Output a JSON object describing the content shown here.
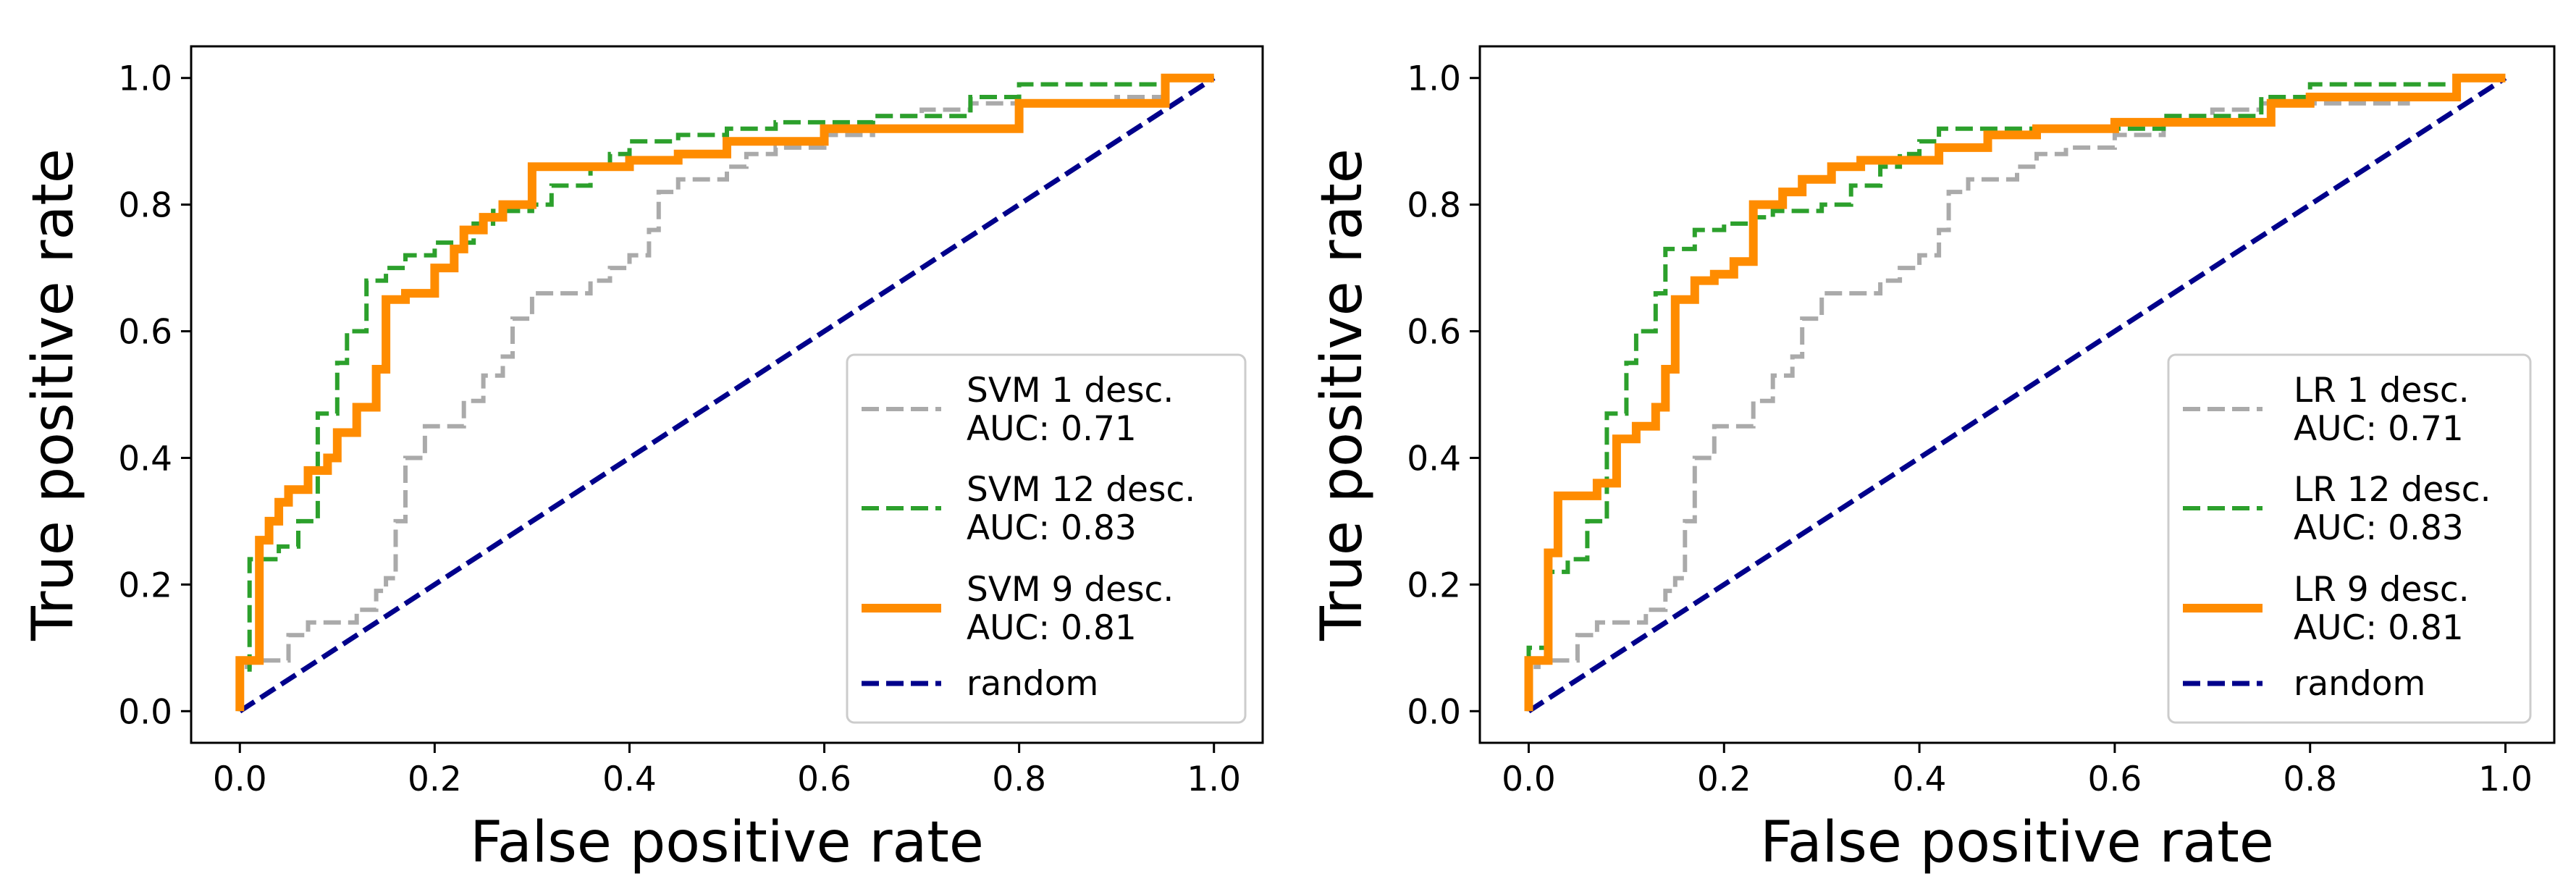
{
  "chart_data": [
    {
      "type": "line",
      "xlabel": "False positive rate",
      "ylabel": "True positive rate",
      "xlim": [
        -0.05,
        1.05
      ],
      "ylim": [
        -0.05,
        1.05
      ],
      "xticks": [
        "0.0",
        "0.2",
        "0.4",
        "0.6",
        "0.8",
        "1.0"
      ],
      "yticks": [
        "0.0",
        "0.2",
        "0.4",
        "0.6",
        "0.8",
        "1.0"
      ],
      "legend_position": "lower-right",
      "series": [
        {
          "name": "SVM 1 desc.",
          "auc_label": "AUC: 0.71",
          "color": "#aaaaaa",
          "style": "dashed",
          "x": [
            0.0,
            0.0,
            0.01,
            0.01,
            0.05,
            0.05,
            0.07,
            0.07,
            0.12,
            0.12,
            0.14,
            0.14,
            0.15,
            0.15,
            0.16,
            0.16,
            0.17,
            0.17,
            0.19,
            0.19,
            0.23,
            0.23,
            0.25,
            0.25,
            0.27,
            0.27,
            0.28,
            0.28,
            0.3,
            0.3,
            0.36,
            0.36,
            0.38,
            0.38,
            0.4,
            0.4,
            0.42,
            0.42,
            0.43,
            0.43,
            0.45,
            0.45,
            0.5,
            0.5,
            0.52,
            0.52,
            0.55,
            0.55,
            0.6,
            0.6,
            0.65,
            0.65,
            0.7,
            0.7,
            0.75,
            0.75,
            0.9,
            0.9,
            0.95,
            0.95,
            1.0
          ],
          "y": [
            0.0,
            0.07,
            0.07,
            0.08,
            0.08,
            0.12,
            0.12,
            0.14,
            0.14,
            0.16,
            0.16,
            0.19,
            0.19,
            0.21,
            0.21,
            0.3,
            0.3,
            0.4,
            0.4,
            0.45,
            0.45,
            0.49,
            0.49,
            0.53,
            0.53,
            0.56,
            0.56,
            0.62,
            0.62,
            0.66,
            0.66,
            0.68,
            0.68,
            0.7,
            0.7,
            0.72,
            0.72,
            0.76,
            0.76,
            0.82,
            0.82,
            0.84,
            0.84,
            0.86,
            0.86,
            0.88,
            0.88,
            0.89,
            0.89,
            0.91,
            0.91,
            0.94,
            0.94,
            0.95,
            0.95,
            0.96,
            0.96,
            0.97,
            0.97,
            1.0,
            1.0
          ]
        },
        {
          "name": "SVM 12 desc.",
          "auc_label": "AUC: 0.83",
          "color": "#2ca02c",
          "style": "dashed",
          "x": [
            0.0,
            0.0,
            0.01,
            0.01,
            0.04,
            0.04,
            0.06,
            0.06,
            0.08,
            0.08,
            0.1,
            0.1,
            0.11,
            0.11,
            0.13,
            0.13,
            0.15,
            0.15,
            0.17,
            0.17,
            0.2,
            0.2,
            0.24,
            0.24,
            0.26,
            0.26,
            0.3,
            0.3,
            0.32,
            0.32,
            0.36,
            0.36,
            0.38,
            0.38,
            0.4,
            0.4,
            0.45,
            0.45,
            0.5,
            0.5,
            0.55,
            0.55,
            0.65,
            0.65,
            0.75,
            0.75,
            0.8,
            0.8,
            0.95,
            0.95,
            1.0
          ],
          "y": [
            0.0,
            0.06,
            0.06,
            0.24,
            0.24,
            0.26,
            0.26,
            0.3,
            0.3,
            0.47,
            0.47,
            0.55,
            0.55,
            0.6,
            0.6,
            0.68,
            0.68,
            0.7,
            0.7,
            0.72,
            0.72,
            0.74,
            0.74,
            0.77,
            0.77,
            0.79,
            0.79,
            0.8,
            0.8,
            0.83,
            0.83,
            0.86,
            0.86,
            0.88,
            0.88,
            0.9,
            0.9,
            0.91,
            0.91,
            0.92,
            0.92,
            0.93,
            0.93,
            0.94,
            0.94,
            0.97,
            0.97,
            0.99,
            0.99,
            1.0,
            1.0
          ]
        },
        {
          "name": "SVM 9 desc.",
          "auc_label": "AUC: 0.81",
          "color": "#ff8c00",
          "style": "solid",
          "x": [
            0.0,
            0.0,
            0.02,
            0.02,
            0.03,
            0.03,
            0.04,
            0.04,
            0.05,
            0.05,
            0.07,
            0.07,
            0.09,
            0.09,
            0.1,
            0.1,
            0.12,
            0.12,
            0.14,
            0.14,
            0.15,
            0.15,
            0.17,
            0.17,
            0.2,
            0.2,
            0.22,
            0.22,
            0.23,
            0.23,
            0.25,
            0.25,
            0.27,
            0.27,
            0.3,
            0.3,
            0.4,
            0.4,
            0.45,
            0.45,
            0.5,
            0.5,
            0.6,
            0.6,
            0.8,
            0.8,
            0.95,
            0.95,
            1.0
          ],
          "y": [
            0.0,
            0.08,
            0.08,
            0.27,
            0.27,
            0.3,
            0.3,
            0.33,
            0.33,
            0.35,
            0.35,
            0.38,
            0.38,
            0.4,
            0.4,
            0.44,
            0.44,
            0.48,
            0.48,
            0.54,
            0.54,
            0.65,
            0.65,
            0.66,
            0.66,
            0.7,
            0.7,
            0.73,
            0.73,
            0.76,
            0.76,
            0.78,
            0.78,
            0.8,
            0.8,
            0.86,
            0.86,
            0.87,
            0.87,
            0.88,
            0.88,
            0.9,
            0.9,
            0.92,
            0.92,
            0.96,
            0.96,
            1.0,
            1.0
          ]
        },
        {
          "name": "random",
          "auc_label": "",
          "color": "#00008b",
          "style": "dashed",
          "x": [
            0.0,
            1.0
          ],
          "y": [
            0.0,
            1.0
          ]
        }
      ]
    },
    {
      "type": "line",
      "xlabel": "False positive rate",
      "ylabel": "True positive rate",
      "xlim": [
        -0.05,
        1.05
      ],
      "ylim": [
        -0.05,
        1.05
      ],
      "xticks": [
        "0.0",
        "0.2",
        "0.4",
        "0.6",
        "0.8",
        "1.0"
      ],
      "yticks": [
        "0.0",
        "0.2",
        "0.4",
        "0.6",
        "0.8",
        "1.0"
      ],
      "legend_position": "lower-right",
      "series": [
        {
          "name": "LR 1 desc.",
          "auc_label": "AUC: 0.71",
          "color": "#aaaaaa",
          "style": "dashed",
          "x": [
            0.0,
            0.0,
            0.01,
            0.01,
            0.05,
            0.05,
            0.07,
            0.07,
            0.12,
            0.12,
            0.14,
            0.14,
            0.15,
            0.15,
            0.16,
            0.16,
            0.17,
            0.17,
            0.19,
            0.19,
            0.23,
            0.23,
            0.25,
            0.25,
            0.27,
            0.27,
            0.28,
            0.28,
            0.3,
            0.3,
            0.36,
            0.36,
            0.38,
            0.38,
            0.4,
            0.4,
            0.42,
            0.42,
            0.43,
            0.43,
            0.45,
            0.45,
            0.5,
            0.5,
            0.52,
            0.52,
            0.55,
            0.55,
            0.6,
            0.6,
            0.65,
            0.65,
            0.7,
            0.7,
            0.75,
            0.75,
            0.9,
            0.9,
            0.95,
            0.95,
            1.0
          ],
          "y": [
            0.0,
            0.07,
            0.07,
            0.08,
            0.08,
            0.12,
            0.12,
            0.14,
            0.14,
            0.16,
            0.16,
            0.19,
            0.19,
            0.21,
            0.21,
            0.3,
            0.3,
            0.4,
            0.4,
            0.45,
            0.45,
            0.49,
            0.49,
            0.53,
            0.53,
            0.56,
            0.56,
            0.62,
            0.62,
            0.66,
            0.66,
            0.68,
            0.68,
            0.7,
            0.7,
            0.72,
            0.72,
            0.76,
            0.76,
            0.82,
            0.82,
            0.84,
            0.84,
            0.86,
            0.86,
            0.88,
            0.88,
            0.89,
            0.89,
            0.91,
            0.91,
            0.94,
            0.94,
            0.95,
            0.95,
            0.96,
            0.96,
            0.97,
            0.97,
            1.0,
            1.0
          ]
        },
        {
          "name": "LR 12 desc.",
          "auc_label": "AUC: 0.83",
          "color": "#2ca02c",
          "style": "dashed",
          "x": [
            0.0,
            0.0,
            0.02,
            0.02,
            0.04,
            0.04,
            0.06,
            0.06,
            0.08,
            0.08,
            0.1,
            0.1,
            0.11,
            0.11,
            0.13,
            0.13,
            0.14,
            0.14,
            0.17,
            0.17,
            0.2,
            0.2,
            0.23,
            0.23,
            0.25,
            0.25,
            0.3,
            0.3,
            0.33,
            0.33,
            0.36,
            0.36,
            0.38,
            0.38,
            0.4,
            0.4,
            0.42,
            0.42,
            0.65,
            0.65,
            0.75,
            0.75,
            0.8,
            0.8,
            0.95,
            0.95,
            1.0
          ],
          "y": [
            0.0,
            0.1,
            0.1,
            0.22,
            0.22,
            0.24,
            0.24,
            0.3,
            0.3,
            0.47,
            0.47,
            0.55,
            0.55,
            0.6,
            0.6,
            0.66,
            0.66,
            0.73,
            0.73,
            0.76,
            0.76,
            0.77,
            0.77,
            0.78,
            0.78,
            0.79,
            0.79,
            0.8,
            0.8,
            0.83,
            0.83,
            0.86,
            0.86,
            0.88,
            0.88,
            0.9,
            0.9,
            0.92,
            0.92,
            0.94,
            0.94,
            0.97,
            0.97,
            0.99,
            0.99,
            1.0,
            1.0
          ]
        },
        {
          "name": "LR 9 desc.",
          "auc_label": "AUC: 0.81",
          "color": "#ff8c00",
          "style": "solid",
          "x": [
            0.0,
            0.0,
            0.02,
            0.02,
            0.03,
            0.03,
            0.07,
            0.07,
            0.09,
            0.09,
            0.11,
            0.11,
            0.13,
            0.13,
            0.14,
            0.14,
            0.15,
            0.15,
            0.17,
            0.17,
            0.19,
            0.19,
            0.21,
            0.21,
            0.23,
            0.23,
            0.26,
            0.26,
            0.28,
            0.28,
            0.31,
            0.31,
            0.34,
            0.34,
            0.42,
            0.42,
            0.47,
            0.47,
            0.52,
            0.52,
            0.6,
            0.6,
            0.76,
            0.76,
            0.8,
            0.8,
            0.95,
            0.95,
            1.0
          ],
          "y": [
            0.0,
            0.08,
            0.08,
            0.25,
            0.25,
            0.34,
            0.34,
            0.36,
            0.36,
            0.43,
            0.43,
            0.45,
            0.45,
            0.48,
            0.48,
            0.54,
            0.54,
            0.65,
            0.65,
            0.68,
            0.68,
            0.69,
            0.69,
            0.71,
            0.71,
            0.8,
            0.8,
            0.82,
            0.82,
            0.84,
            0.84,
            0.86,
            0.86,
            0.87,
            0.87,
            0.89,
            0.89,
            0.91,
            0.91,
            0.92,
            0.92,
            0.93,
            0.93,
            0.96,
            0.96,
            0.97,
            0.97,
            1.0,
            1.0
          ]
        },
        {
          "name": "random",
          "auc_label": "",
          "color": "#00008b",
          "style": "dashed",
          "x": [
            0.0,
            1.0
          ],
          "y": [
            0.0,
            1.0
          ]
        }
      ]
    }
  ]
}
